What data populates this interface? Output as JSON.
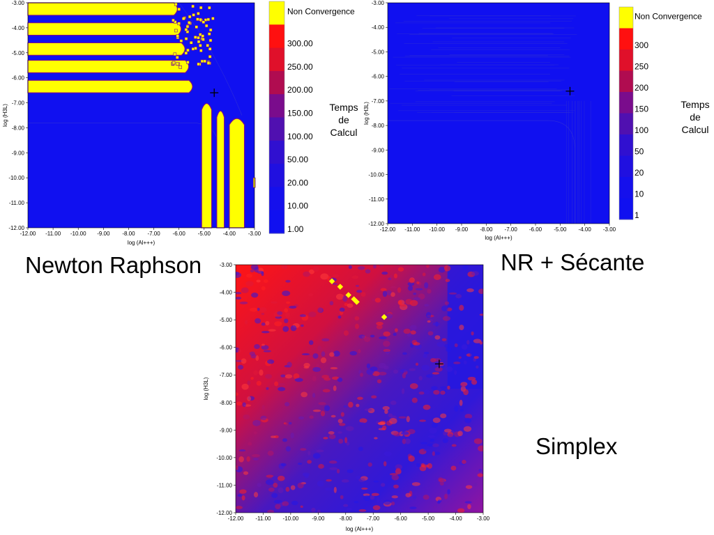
{
  "captions": {
    "newton": "Newton Raphson",
    "secant": "NR + Sécante",
    "simplex": "Simplex"
  },
  "colors": {
    "blue": "#1010f0",
    "red": "#ff1010",
    "yellow": "#ffff00",
    "purple": "#7a0c8c"
  },
  "chart_data": [
    {
      "type": "heatmap",
      "title": "",
      "xlabel": "log (Al+++)",
      "ylabel": "log (H3L)",
      "xlim": [
        -12.0,
        -3.0
      ],
      "ylim": [
        -12.0,
        -3.0
      ],
      "x_ticks": [
        "-12.00",
        "-11.00",
        "-10.00",
        "-9.00",
        "-8.00",
        "-7.00",
        "-6.00",
        "-5.00",
        "-4.00",
        "-3.00"
      ],
      "y_ticks": [
        "-3.00",
        "-4.00",
        "-5.00",
        "-6.00",
        "-7.00",
        "-8.00",
        "-9.00",
        "-10.00",
        "-11.00",
        "-12.00"
      ],
      "marker": [
        -4.6,
        -6.6
      ],
      "colorbar": {
        "title": [
          "Temps",
          "de",
          "Calcul"
        ],
        "labels": [
          "Non Convergence",
          "300.00",
          "250.00",
          "200.00",
          "150.00",
          "100.00",
          "50.00",
          "20.00",
          "10.00",
          "1.00"
        ]
      },
      "regions": {
        "nonconvergence_bands_y": [
          [
            -3.0,
            -3.5
          ],
          [
            -3.8,
            -4.3
          ],
          [
            -4.6,
            -5.1
          ],
          [
            -5.3,
            -5.8
          ],
          [
            -6.1,
            -6.6
          ]
        ],
        "nonconvergence_columns_x": [
          [
            -5.1,
            -4.7
          ],
          [
            -4.5,
            -4.2
          ],
          [
            -4.0,
            -3.4
          ]
        ]
      }
    },
    {
      "type": "heatmap",
      "title": "",
      "xlabel": "log (Al+++)",
      "ylabel": "log (H3L)",
      "xlim": [
        -12.0,
        -3.0
      ],
      "ylim": [
        -12.0,
        -3.0
      ],
      "x_ticks": [
        "-12.00",
        "-11.00",
        "-10.00",
        "-9.00",
        "-8.00",
        "-7.00",
        "-6.00",
        "-5.00",
        "-4.00",
        "-3.00"
      ],
      "y_ticks": [
        "-3.00",
        "-4.00",
        "-5.00",
        "-6.00",
        "-7.00",
        "-8.00",
        "-9.00",
        "-10.00",
        "-11.00",
        "-12.00"
      ],
      "marker": [
        -4.6,
        -6.6
      ],
      "colorbar": {
        "title": [
          "Temps",
          "de",
          "Calcul"
        ],
        "labels": [
          "Non Convergence",
          "300",
          "250",
          "200",
          "150",
          "100",
          "50",
          "20",
          "10",
          "1"
        ]
      }
    },
    {
      "type": "heatmap",
      "title": "",
      "xlabel": "log (Al+++)",
      "ylabel": "log (H3L)",
      "xlim": [
        -12.0,
        -3.0
      ],
      "ylim": [
        -12.0,
        -3.0
      ],
      "x_ticks": [
        "-12.00",
        "-11.00",
        "-10.00",
        "-9.00",
        "-8.00",
        "-7.00",
        "-6.00",
        "-5.00",
        "-4.00",
        "-3.00"
      ],
      "y_ticks": [
        "-3.00",
        "-4.00",
        "-5.00",
        "-6.00",
        "-7.00",
        "-8.00",
        "-9.00",
        "-10.00",
        "-11.00",
        "-12.00"
      ],
      "marker": [
        -4.6,
        -6.6
      ],
      "nonconvergence_points": [
        [
          -8.5,
          -3.6
        ],
        [
          -8.2,
          -3.8
        ],
        [
          -7.9,
          -4.1
        ],
        [
          -7.7,
          -4.25
        ],
        [
          -7.6,
          -4.35
        ],
        [
          -6.6,
          -4.9
        ]
      ]
    }
  ]
}
